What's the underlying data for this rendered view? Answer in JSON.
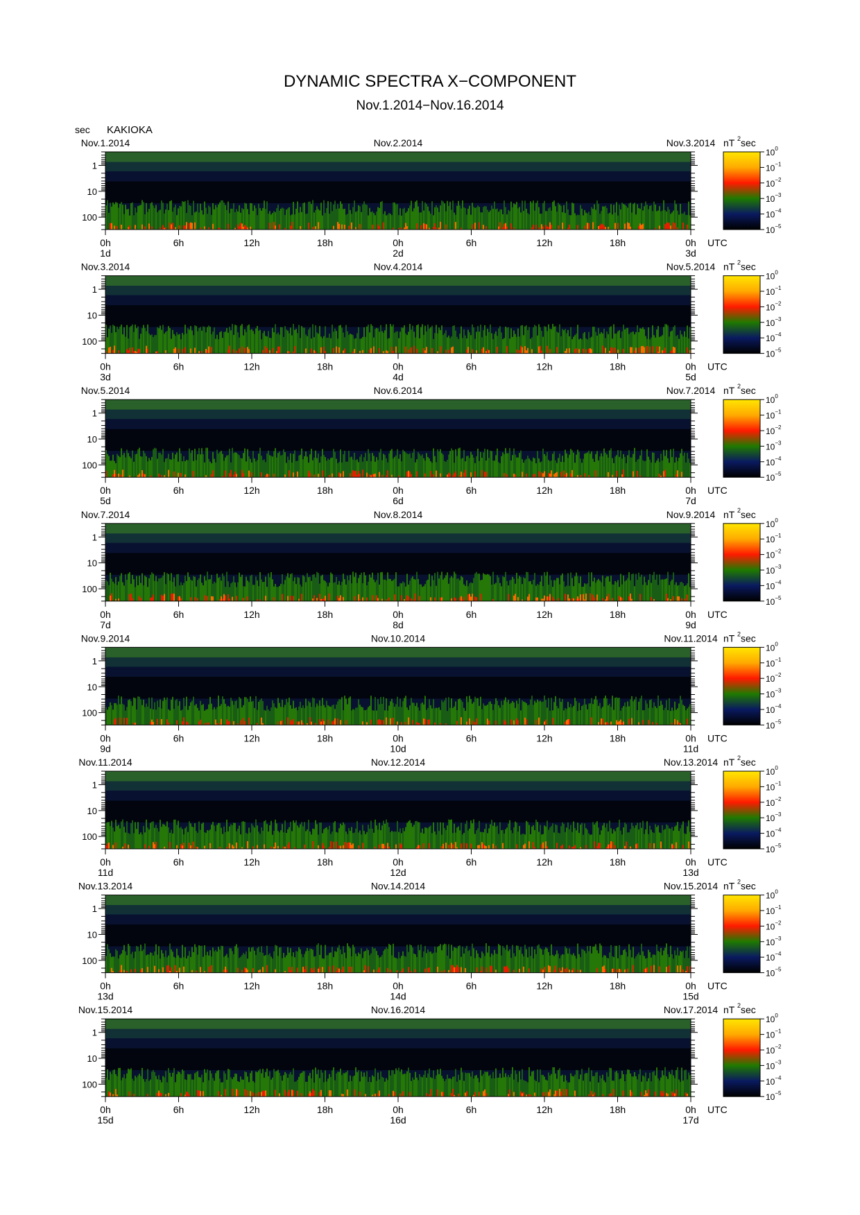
{
  "chart_data": {
    "type": "heatmap",
    "title": "DYNAMIC SPECTRA X−COMPONENT",
    "subtitle": "Nov.1.2014−Nov.16.2014",
    "station": "KAKIOKA",
    "y_unit": "sec",
    "yscale": "log",
    "ylim": [
      0.3,
      300
    ],
    "y_ticks": [
      "1",
      "10",
      "100"
    ],
    "x_ticks": [
      "0h",
      "6h",
      "12h",
      "18h",
      "0h",
      "6h",
      "12h",
      "18h",
      "0h"
    ],
    "x_unit": "UTC",
    "colorbar": {
      "unit_base": "nT",
      "unit_exp": "2",
      "unit_suffix": "sec",
      "tick_base": "10",
      "tick_exponents": [
        "0",
        "−1",
        "−2",
        "−3",
        "−4",
        "−5"
      ],
      "colors": [
        "#ffe600",
        "#ff3300",
        "#1f7a00",
        "#0a1a60",
        "#000000"
      ]
    },
    "panels": [
      {
        "dates": [
          "Nov.1.2014",
          "Nov.2.2014",
          "Nov.3.2014"
        ],
        "days": [
          "1d",
          "2d",
          "3d"
        ]
      },
      {
        "dates": [
          "Nov.3.2014",
          "Nov.4.2014",
          "Nov.5.2014"
        ],
        "days": [
          "3d",
          "4d",
          "5d"
        ]
      },
      {
        "dates": [
          "Nov.5.2014",
          "Nov.6.2014",
          "Nov.7.2014"
        ],
        "days": [
          "5d",
          "6d",
          "7d"
        ]
      },
      {
        "dates": [
          "Nov.7.2014",
          "Nov.8.2014",
          "Nov.9.2014"
        ],
        "days": [
          "7d",
          "8d",
          "9d"
        ]
      },
      {
        "dates": [
          "Nov.9.2014",
          "Nov.10.2014",
          "Nov.11.2014"
        ],
        "days": [
          "9d",
          "10d",
          "11d"
        ]
      },
      {
        "dates": [
          "Nov.11.2014",
          "Nov.12.2014",
          "Nov.13.2014"
        ],
        "days": [
          "11d",
          "12d",
          "13d"
        ]
      },
      {
        "dates": [
          "Nov.13.2014",
          "Nov.14.2014",
          "Nov.15.2014"
        ],
        "days": [
          "13d",
          "14d",
          "15d"
        ]
      },
      {
        "dates": [
          "Nov.15.2014",
          "Nov.16.2014",
          "Nov.17.2014"
        ],
        "days": [
          "15d",
          "16d",
          "17d"
        ]
      }
    ]
  }
}
